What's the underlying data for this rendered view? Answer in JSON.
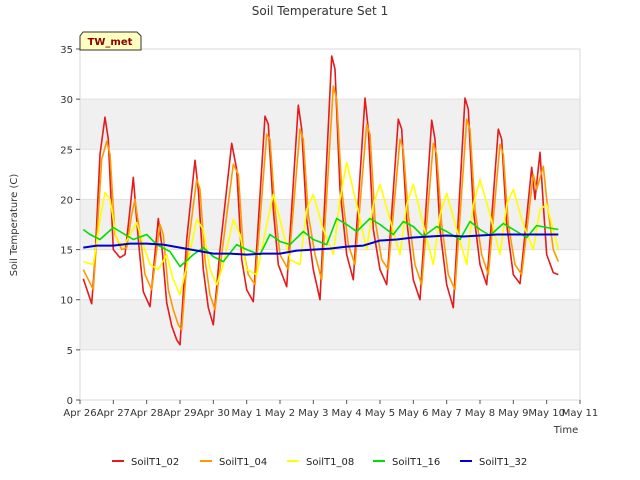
{
  "chart_data": {
    "type": "line",
    "title": "Soil Temperature Set 1",
    "xlabel": "Time",
    "ylabel": "Soil Temperature (C)",
    "badge": "TW_met",
    "ylim": [
      0,
      35
    ],
    "yticks": [
      0,
      5,
      10,
      15,
      20,
      25,
      30,
      35
    ],
    "xlim": [
      "2024-04-26",
      "2024-05-11"
    ],
    "xticks": [
      "Apr 26",
      "Apr 27",
      "Apr 28",
      "Apr 29",
      "Apr 30",
      "May 1",
      "May 2",
      "May 3",
      "May 4",
      "May 5",
      "May 6",
      "May 7",
      "May 8",
      "May 9",
      "May 10",
      "May 11"
    ],
    "grid": "horizontal bands",
    "legend_position": "bottom",
    "series": [
      {
        "name": "SoilT1_02",
        "color": "#e41a1c",
        "x": [
          0.1,
          0.35,
          0.45,
          0.6,
          0.75,
          0.85,
          1.0,
          1.2,
          1.35,
          1.5,
          1.6,
          1.75,
          1.9,
          2.1,
          2.35,
          2.45,
          2.6,
          2.75,
          2.9,
          3.0,
          3.2,
          3.45,
          3.55,
          3.7,
          3.85,
          4.0,
          4.2,
          4.55,
          4.7,
          4.85,
          5.0,
          5.2,
          5.55,
          5.65,
          5.8,
          5.95,
          6.2,
          6.55,
          6.65,
          6.8,
          7.0,
          7.2,
          7.55,
          7.65,
          7.8,
          8.0,
          8.2,
          8.55,
          8.65,
          8.8,
          9.0,
          9.2,
          9.55,
          9.65,
          9.8,
          10.0,
          10.2,
          10.55,
          10.65,
          10.8,
          11.0,
          11.2,
          11.55,
          11.65,
          11.8,
          12.0,
          12.2,
          12.55,
          12.65,
          12.8,
          13.0,
          13.2,
          13.55,
          13.65,
          13.8,
          13.9,
          14.0,
          14.2,
          14.35
        ],
        "y": [
          12.1,
          9.6,
          14.0,
          24.5,
          28.2,
          26.0,
          15.0,
          14.2,
          14.5,
          19.0,
          22.2,
          16.0,
          10.8,
          9.3,
          18.1,
          15.5,
          9.7,
          7.4,
          6.0,
          5.5,
          16.0,
          23.9,
          21.0,
          13.0,
          9.2,
          7.5,
          15.0,
          25.6,
          23.0,
          14.0,
          11.0,
          9.8,
          28.3,
          27.5,
          19.0,
          13.5,
          11.3,
          29.4,
          27.0,
          18.0,
          13.0,
          10.0,
          34.3,
          33.0,
          21.0,
          14.5,
          12.0,
          30.1,
          27.0,
          17.0,
          13.0,
          11.5,
          28.0,
          27.0,
          18.0,
          12.0,
          10.0,
          27.9,
          26.0,
          17.0,
          11.5,
          9.2,
          30.1,
          29.0,
          19.0,
          13.5,
          11.5,
          27.0,
          26.0,
          17.5,
          12.5,
          11.6,
          23.2,
          20.0,
          24.7,
          19.5,
          14.5,
          12.7,
          12.5
        ]
      },
      {
        "name": "SoilT1_04",
        "color": "#ff9900",
        "x": [
          0.1,
          0.4,
          0.5,
          0.65,
          0.8,
          0.9,
          1.05,
          1.25,
          1.4,
          1.55,
          1.65,
          1.8,
          1.95,
          2.15,
          2.4,
          2.5,
          2.65,
          2.8,
          2.95,
          3.05,
          3.25,
          3.5,
          3.6,
          3.75,
          3.9,
          4.05,
          4.25,
          4.6,
          4.75,
          4.9,
          5.05,
          5.25,
          5.6,
          5.7,
          5.85,
          6.0,
          6.25,
          6.6,
          6.7,
          6.85,
          7.05,
          7.25,
          7.6,
          7.7,
          7.85,
          8.05,
          8.25,
          8.6,
          8.7,
          8.85,
          9.05,
          9.25,
          9.6,
          9.7,
          9.85,
          10.05,
          10.25,
          10.6,
          10.7,
          10.85,
          11.05,
          11.25,
          11.6,
          11.7,
          11.85,
          12.05,
          12.25,
          12.6,
          12.7,
          12.85,
          13.05,
          13.25,
          13.6,
          13.7,
          13.9,
          14.0,
          14.2,
          14.35
        ],
        "y": [
          13.0,
          11.0,
          16.0,
          24.0,
          25.8,
          24.5,
          16.5,
          15.0,
          15.2,
          18.5,
          20.0,
          16.5,
          12.5,
          11.0,
          17.5,
          16.5,
          11.0,
          9.0,
          7.5,
          7.0,
          15.5,
          22.0,
          21.0,
          14.0,
          10.5,
          9.0,
          14.5,
          23.5,
          22.5,
          15.0,
          12.5,
          11.5,
          26.5,
          26.0,
          19.0,
          14.5,
          13.0,
          27.0,
          26.0,
          18.5,
          14.5,
          12.0,
          31.3,
          30.0,
          21.0,
          15.5,
          13.5,
          27.5,
          26.5,
          18.0,
          14.0,
          13.0,
          26.0,
          25.0,
          18.5,
          13.5,
          11.5,
          25.6,
          24.5,
          17.5,
          12.5,
          11.0,
          28.0,
          27.0,
          19.0,
          14.5,
          12.5,
          25.5,
          24.5,
          17.5,
          13.5,
          12.5,
          22.5,
          21.0,
          23.3,
          20.0,
          15.0,
          13.8
        ]
      },
      {
        "name": "SoilT1_08",
        "color": "#ffff00",
        "x": [
          0.1,
          0.4,
          0.6,
          0.75,
          0.9,
          1.1,
          1.3,
          1.5,
          1.7,
          1.9,
          2.1,
          2.35,
          2.6,
          2.8,
          3.0,
          3.25,
          3.5,
          3.7,
          3.9,
          4.1,
          4.3,
          4.6,
          4.8,
          5.0,
          5.3,
          5.6,
          5.8,
          6.0,
          6.3,
          6.6,
          6.8,
          7.0,
          7.3,
          7.6,
          7.8,
          8.0,
          8.3,
          8.6,
          8.8,
          9.0,
          9.3,
          9.6,
          9.8,
          10.0,
          10.3,
          10.6,
          10.8,
          11.0,
          11.3,
          11.6,
          11.8,
          12.0,
          12.3,
          12.6,
          12.8,
          13.0,
          13.3,
          13.6,
          13.8,
          14.0,
          14.35
        ],
        "y": [
          13.8,
          13.5,
          18.0,
          20.7,
          20.0,
          16.0,
          15.3,
          16.5,
          17.7,
          15.5,
          13.5,
          13.0,
          14.5,
          12.0,
          10.5,
          14.0,
          18.0,
          17.0,
          13.0,
          11.5,
          13.5,
          18.0,
          16.5,
          13.0,
          12.5,
          17.5,
          20.5,
          18.0,
          14.0,
          13.5,
          19.0,
          20.5,
          17.0,
          14.5,
          20.0,
          23.7,
          19.5,
          15.0,
          19.5,
          21.5,
          18.0,
          14.5,
          19.5,
          21.5,
          17.5,
          13.5,
          18.5,
          20.6,
          17.0,
          13.5,
          19.5,
          22.0,
          18.5,
          14.5,
          19.5,
          21.0,
          17.5,
          15.0,
          19.0,
          19.5,
          15.0
        ]
      },
      {
        "name": "SoilT1_16",
        "color": "#00dd00",
        "x": [
          0.1,
          0.3,
          0.6,
          1.0,
          1.3,
          1.6,
          2.0,
          2.3,
          2.7,
          3.0,
          3.4,
          3.7,
          4.0,
          4.3,
          4.7,
          5.0,
          5.4,
          5.7,
          6.0,
          6.3,
          6.7,
          7.0,
          7.4,
          7.7,
          8.0,
          8.3,
          8.7,
          9.0,
          9.4,
          9.7,
          10.0,
          10.3,
          10.7,
          11.0,
          11.4,
          11.7,
          12.0,
          12.3,
          12.7,
          13.0,
          13.4,
          13.7,
          14.0,
          14.35
        ],
        "y": [
          17.0,
          16.5,
          16.0,
          17.2,
          16.6,
          16.0,
          16.5,
          15.5,
          14.8,
          13.3,
          14.5,
          15.2,
          14.3,
          13.8,
          15.5,
          15.0,
          14.5,
          16.5,
          15.8,
          15.5,
          16.8,
          16.0,
          15.5,
          18.1,
          17.5,
          16.8,
          18.1,
          17.5,
          16.5,
          17.8,
          17.3,
          16.3,
          17.3,
          16.8,
          16.0,
          17.8,
          17.0,
          16.4,
          17.6,
          17.0,
          16.2,
          17.4,
          17.2,
          17.0
        ]
      },
      {
        "name": "SoilT1_32",
        "color": "#0000cc",
        "x": [
          0.1,
          0.5,
          1.0,
          1.5,
          2.0,
          2.5,
          3.0,
          3.5,
          4.0,
          4.5,
          5.0,
          5.5,
          6.0,
          6.5,
          7.0,
          7.5,
          8.0,
          8.5,
          9.0,
          9.5,
          10.0,
          10.5,
          11.0,
          11.5,
          12.0,
          12.5,
          13.0,
          13.5,
          14.0,
          14.35
        ],
        "y": [
          15.2,
          15.4,
          15.4,
          15.6,
          15.6,
          15.5,
          15.2,
          14.9,
          14.6,
          14.6,
          14.5,
          14.6,
          14.6,
          14.9,
          15.0,
          15.1,
          15.3,
          15.4,
          15.9,
          16.0,
          16.2,
          16.3,
          16.4,
          16.3,
          16.4,
          16.5,
          16.5,
          16.5,
          16.5,
          16.5
        ]
      }
    ]
  }
}
